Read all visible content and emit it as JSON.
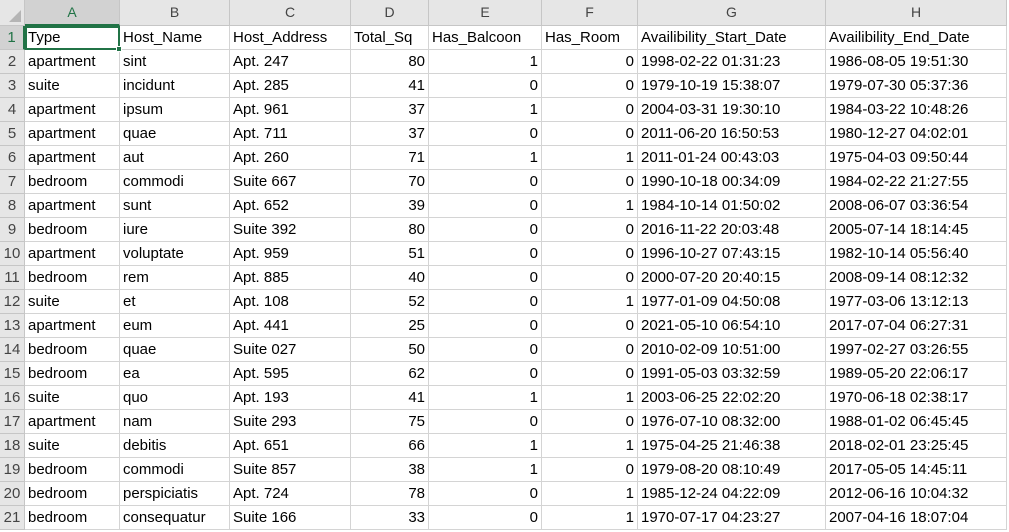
{
  "column_letters": [
    "A",
    "B",
    "C",
    "D",
    "E",
    "F",
    "G",
    "H"
  ],
  "active_cell": "A1",
  "rows": [
    [
      "Type",
      "Host_Name",
      "Host_Address",
      "Total_Sq",
      "Has_Balcoon",
      "Has_Room",
      "Availibility_Start_Date",
      "Availibility_End_Date"
    ],
    [
      "apartment",
      "sint",
      "Apt. 247",
      "80",
      "1",
      "0",
      "1998-02-22 01:31:23",
      "1986-08-05 19:51:30"
    ],
    [
      "suite",
      "incidunt",
      "Apt. 285",
      "41",
      "0",
      "0",
      "1979-10-19 15:38:07",
      "1979-07-30 05:37:36"
    ],
    [
      "apartment",
      "ipsum",
      "Apt. 961",
      "37",
      "1",
      "0",
      "2004-03-31 19:30:10",
      "1984-03-22 10:48:26"
    ],
    [
      "apartment",
      "quae",
      "Apt. 711",
      "37",
      "0",
      "0",
      "2011-06-20 16:50:53",
      "1980-12-27 04:02:01"
    ],
    [
      "apartment",
      "aut",
      "Apt. 260",
      "71",
      "1",
      "1",
      "2011-01-24 00:43:03",
      "1975-04-03 09:50:44"
    ],
    [
      "bedroom",
      "commodi",
      "Suite 667",
      "70",
      "0",
      "0",
      "1990-10-18 00:34:09",
      "1984-02-22 21:27:55"
    ],
    [
      "apartment",
      "sunt",
      "Apt. 652",
      "39",
      "0",
      "1",
      "1984-10-14 01:50:02",
      "2008-06-07 03:36:54"
    ],
    [
      "bedroom",
      "iure",
      "Suite 392",
      "80",
      "0",
      "0",
      "2016-11-22 20:03:48",
      "2005-07-14 18:14:45"
    ],
    [
      "apartment",
      "voluptate",
      "Apt. 959",
      "51",
      "0",
      "0",
      "1996-10-27 07:43:15",
      "1982-10-14 05:56:40"
    ],
    [
      "bedroom",
      "rem",
      "Apt. 885",
      "40",
      "0",
      "0",
      "2000-07-20 20:40:15",
      "2008-09-14 08:12:32"
    ],
    [
      "suite",
      "et",
      "Apt. 108",
      "52",
      "0",
      "1",
      "1977-01-09 04:50:08",
      "1977-03-06 13:12:13"
    ],
    [
      "apartment",
      "eum",
      "Apt. 441",
      "25",
      "0",
      "0",
      "2021-05-10 06:54:10",
      "2017-07-04 06:27:31"
    ],
    [
      "bedroom",
      "quae",
      "Suite 027",
      "50",
      "0",
      "0",
      "2010-02-09 10:51:00",
      "1997-02-27 03:26:55"
    ],
    [
      "bedroom",
      "ea",
      "Apt. 595",
      "62",
      "0",
      "0",
      "1991-05-03 03:32:59",
      "1989-05-20 22:06:17"
    ],
    [
      "suite",
      "quo",
      "Apt. 193",
      "41",
      "1",
      "1",
      "2003-06-25 22:02:20",
      "1970-06-18 02:38:17"
    ],
    [
      "apartment",
      "nam",
      "Suite 293",
      "75",
      "0",
      "0",
      "1976-07-10 08:32:00",
      "1988-01-02 06:45:45"
    ],
    [
      "suite",
      "debitis",
      "Apt. 651",
      "66",
      "1",
      "1",
      "1975-04-25 21:46:38",
      "2018-02-01 23:25:45"
    ],
    [
      "bedroom",
      "commodi",
      "Suite 857",
      "38",
      "1",
      "0",
      "1979-08-20 08:10:49",
      "2017-05-05 14:45:11"
    ],
    [
      "bedroom",
      "perspiciatis",
      "Apt. 724",
      "78",
      "0",
      "1",
      "1985-12-24 04:22:09",
      "2012-06-16 10:04:32"
    ],
    [
      "bedroom",
      "consequatur",
      "Suite 166",
      "33",
      "0",
      "1",
      "1970-07-17 04:23:27",
      "2007-04-16 18:07:04"
    ]
  ]
}
